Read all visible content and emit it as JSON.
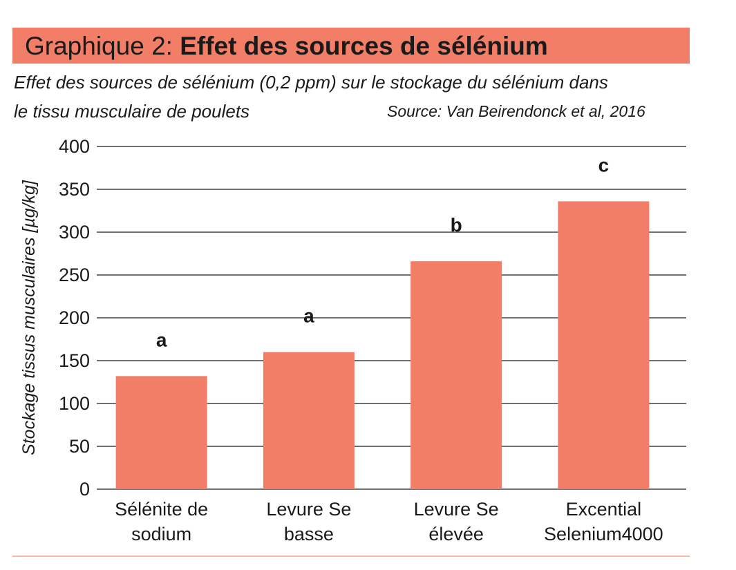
{
  "header": {
    "title_prefix": "Graphique 2:",
    "title_main": "Effet des sources de sélénium",
    "subtitle_line1": "Effet des sources de sélénium (0,2 ppm) sur le stockage du sélénium dans",
    "subtitle_line2": "le tissu musculaire de poulets",
    "source": "Source: Van Beirendonck et al, 2016"
  },
  "colors": {
    "banner": "#f27e68",
    "bar": "#f27e68",
    "grid": "#1a1a1a",
    "rule": "#f6b9ab"
  },
  "chart_data": {
    "type": "bar",
    "categories": [
      [
        "Sélénite de",
        "sodium"
      ],
      [
        "Levure Se",
        "basse"
      ],
      [
        "Levure Se",
        "élevée"
      ],
      [
        "Excential",
        "Selenium4000"
      ]
    ],
    "values": [
      132,
      160,
      266,
      336
    ],
    "significance_labels": [
      "a",
      "a",
      "b",
      "c"
    ],
    "ylabel": "Stockage tissus musculaires [µg/kg]",
    "xlabel": "",
    "ylim": [
      0,
      400
    ],
    "yticks": [
      0,
      50,
      100,
      150,
      200,
      250,
      300,
      350,
      400
    ],
    "grid": true
  }
}
